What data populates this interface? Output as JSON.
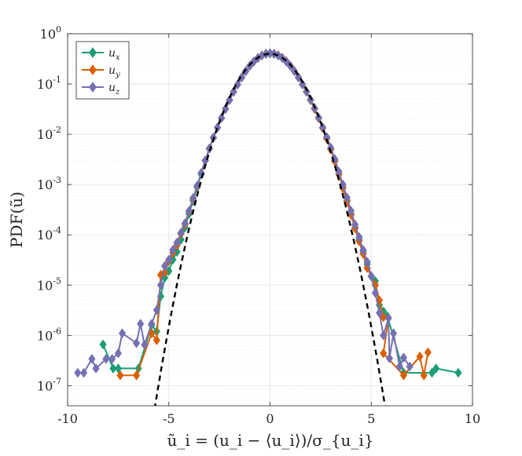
{
  "chart_data": {
    "type": "line",
    "xlabel": "ũ_i = (u_i − ⟨u_i⟩)/σ_{u_i}",
    "ylabel": "PDF(ũ)",
    "xlim": [
      -10,
      10
    ],
    "ylim_log10": [
      -7.4,
      0
    ],
    "y_scale": "log",
    "grid": true,
    "legend_position": "top-left",
    "x_ticks": [
      -10,
      -5,
      0,
      5,
      10
    ],
    "y_ticks": [
      {
        "base": "10",
        "exp": "0",
        "value": 1
      },
      {
        "base": "10",
        "exp": "-1",
        "value": 0.1
      },
      {
        "base": "10",
        "exp": "-2",
        "value": 0.01
      },
      {
        "base": "10",
        "exp": "-3",
        "value": 0.001
      },
      {
        "base": "10",
        "exp": "-4",
        "value": 0.0001
      },
      {
        "base": "10",
        "exp": "-5",
        "value": 1e-05
      },
      {
        "base": "10",
        "exp": "-6",
        "value": 1e-06
      },
      {
        "base": "10",
        "exp": "-7",
        "value": 1e-07
      }
    ],
    "series": [
      {
        "name": "u_x",
        "color": "#1b9e77",
        "marker": "diamond",
        "points": [
          [
            -8.25,
            6.6e-07
          ],
          [
            -7.75,
            2.2e-07
          ],
          [
            -7.5,
            2.2e-07
          ],
          [
            -6.5,
            2.2e-07
          ],
          [
            -5.85,
            1.6e-06
          ],
          [
            -5.6,
            1.2e-06
          ],
          [
            -5.4,
            6e-06
          ],
          [
            -5.2,
            1.4e-05
          ],
          [
            -5.0,
            1.9e-05
          ],
          [
            -4.8,
            3.2e-05
          ],
          [
            -4.6,
            4.6e-05
          ],
          [
            -4.4,
            8e-05
          ],
          [
            -4.2,
            0.00014
          ],
          [
            -4.0,
            0.00026
          ],
          [
            -3.8,
            0.00048
          ],
          [
            -3.6,
            0.00088
          ],
          [
            -3.4,
            0.0016
          ],
          [
            -3.2,
            0.003
          ],
          [
            -3.0,
            0.0052
          ],
          [
            -2.8,
            0.0085
          ],
          [
            -2.6,
            0.0135
          ],
          [
            -2.4,
            0.021
          ],
          [
            -2.2,
            0.032
          ],
          [
            -2.0,
            0.048
          ],
          [
            -1.8,
            0.07
          ],
          [
            -1.6,
            0.098
          ],
          [
            -1.4,
            0.135
          ],
          [
            -1.2,
            0.18
          ],
          [
            -1.0,
            0.23
          ],
          [
            -0.8,
            0.28
          ],
          [
            -0.6,
            0.33
          ],
          [
            -0.4,
            0.37
          ],
          [
            -0.2,
            0.395
          ],
          [
            0.0,
            0.405
          ],
          [
            0.2,
            0.395
          ],
          [
            0.4,
            0.37
          ],
          [
            0.6,
            0.33
          ],
          [
            0.8,
            0.28
          ],
          [
            1.0,
            0.23
          ],
          [
            1.2,
            0.18
          ],
          [
            1.4,
            0.135
          ],
          [
            1.6,
            0.098
          ],
          [
            1.8,
            0.07
          ],
          [
            2.0,
            0.048
          ],
          [
            2.2,
            0.032
          ],
          [
            2.4,
            0.021
          ],
          [
            2.6,
            0.0135
          ],
          [
            2.8,
            0.0085
          ],
          [
            3.0,
            0.0052
          ],
          [
            3.2,
            0.003
          ],
          [
            3.4,
            0.0016
          ],
          [
            3.6,
            0.00088
          ],
          [
            3.8,
            0.00048
          ],
          [
            4.0,
            0.00026
          ],
          [
            4.2,
            0.00014
          ],
          [
            4.4,
            8e-05
          ],
          [
            4.6,
            4.6e-05
          ],
          [
            4.8,
            2.6e-05
          ],
          [
            5.0,
            1.5e-05
          ],
          [
            5.2,
            1.2e-05
          ],
          [
            5.4,
            4e-06
          ],
          [
            5.6,
            3e-06
          ],
          [
            5.8,
            2.4e-06
          ],
          [
            6.6,
            1.8e-07
          ],
          [
            8.0,
            1.8e-07
          ],
          [
            8.2,
            2.2e-07
          ],
          [
            9.3,
            1.8e-07
          ]
        ]
      },
      {
        "name": "u_y",
        "color": "#d95f02",
        "marker": "diamond",
        "points": [
          [
            -7.4,
            1.6e-07
          ],
          [
            -6.6,
            1.6e-07
          ],
          [
            -5.85,
            1.1e-06
          ],
          [
            -5.6,
            8e-07
          ],
          [
            -5.4,
            1.6e-05
          ],
          [
            -5.2,
            1.8e-05
          ],
          [
            -5.0,
            3e-05
          ],
          [
            -4.8,
            4.4e-05
          ],
          [
            -4.6,
            6.2e-05
          ],
          [
            -4.4,
            0.000105
          ],
          [
            -4.2,
            0.00016
          ],
          [
            -4.0,
            0.00029
          ],
          [
            -3.8,
            0.00052
          ],
          [
            -3.6,
            0.00092
          ],
          [
            -3.4,
            0.0017
          ],
          [
            -3.2,
            0.003
          ],
          [
            -3.0,
            0.0052
          ],
          [
            -2.8,
            0.0086
          ],
          [
            -2.6,
            0.0136
          ],
          [
            -2.4,
            0.021
          ],
          [
            -2.2,
            0.032
          ],
          [
            -2.0,
            0.048
          ],
          [
            -1.8,
            0.07
          ],
          [
            -1.6,
            0.098
          ],
          [
            -1.4,
            0.135
          ],
          [
            -1.2,
            0.18
          ],
          [
            -1.0,
            0.23
          ],
          [
            -0.8,
            0.28
          ],
          [
            -0.6,
            0.33
          ],
          [
            -0.4,
            0.37
          ],
          [
            -0.2,
            0.4
          ],
          [
            0.0,
            0.41
          ],
          [
            0.2,
            0.4
          ],
          [
            0.4,
            0.375
          ],
          [
            0.6,
            0.335
          ],
          [
            0.8,
            0.285
          ],
          [
            1.0,
            0.233
          ],
          [
            1.2,
            0.182
          ],
          [
            1.4,
            0.136
          ],
          [
            1.6,
            0.098
          ],
          [
            1.8,
            0.07
          ],
          [
            2.0,
            0.048
          ],
          [
            2.2,
            0.032
          ],
          [
            2.4,
            0.021
          ],
          [
            2.6,
            0.0133
          ],
          [
            2.8,
            0.0082
          ],
          [
            3.0,
            0.005
          ],
          [
            3.2,
            0.0029
          ],
          [
            3.4,
            0.0016
          ],
          [
            3.6,
            0.00085
          ],
          [
            3.8,
            0.00046
          ],
          [
            4.0,
            0.00025
          ],
          [
            4.2,
            0.000135
          ],
          [
            4.4,
            7.5e-05
          ],
          [
            4.6,
            4.2e-05
          ],
          [
            4.8,
            2.2e-05
          ],
          [
            5.0,
            1.5e-05
          ],
          [
            5.2,
            1e-05
          ],
          [
            5.4,
            5e-06
          ],
          [
            5.6,
            2.3e-06
          ],
          [
            5.85,
            2.2e-06
          ],
          [
            5.6,
            4.4e-07
          ],
          [
            6.6,
            1.6e-07
          ],
          [
            7.4,
            3.8e-07
          ],
          [
            7.6,
            1.6e-07
          ],
          [
            7.8,
            4.6e-07
          ]
        ]
      },
      {
        "name": "u_z",
        "color": "#7570b3",
        "marker": "diamond",
        "points": [
          [
            -9.5,
            1.8e-07
          ],
          [
            -9.2,
            1.8e-07
          ],
          [
            -8.8,
            3.4e-07
          ],
          [
            -8.6,
            2.2e-07
          ],
          [
            -8.1,
            3.4e-07
          ],
          [
            -7.8,
            3.4e-07
          ],
          [
            -7.5,
            4.4e-07
          ],
          [
            -7.3,
            1.1e-06
          ],
          [
            -6.6,
            7e-07
          ],
          [
            -6.4,
            1.7e-06
          ],
          [
            -6.2,
            6.5e-07
          ],
          [
            -5.85,
            1.7e-06
          ],
          [
            -5.6,
            3.2e-06
          ],
          [
            -5.4,
            1e-05
          ],
          [
            -5.2,
            2.4e-05
          ],
          [
            -5.0,
            3.2e-05
          ],
          [
            -4.8,
            5e-05
          ],
          [
            -4.6,
            7e-05
          ],
          [
            -4.4,
            0.00011
          ],
          [
            -4.2,
            0.00017
          ],
          [
            -4.0,
            0.0003
          ],
          [
            -3.8,
            0.00054
          ],
          [
            -3.6,
            0.00095
          ],
          [
            -3.4,
            0.0017
          ],
          [
            -3.2,
            0.003
          ],
          [
            -3.0,
            0.0052
          ],
          [
            -2.8,
            0.0086
          ],
          [
            -2.6,
            0.0136
          ],
          [
            -2.4,
            0.021
          ],
          [
            -2.2,
            0.032
          ],
          [
            -2.0,
            0.048
          ],
          [
            -1.8,
            0.07
          ],
          [
            -1.6,
            0.098
          ],
          [
            -1.4,
            0.135
          ],
          [
            -1.2,
            0.18
          ],
          [
            -1.0,
            0.23
          ],
          [
            -0.8,
            0.28
          ],
          [
            -0.6,
            0.33
          ],
          [
            -0.4,
            0.37
          ],
          [
            -0.2,
            0.4
          ],
          [
            0.0,
            0.41
          ],
          [
            0.2,
            0.4
          ],
          [
            0.4,
            0.37
          ],
          [
            0.6,
            0.33
          ],
          [
            0.8,
            0.28
          ],
          [
            1.0,
            0.23
          ],
          [
            1.2,
            0.18
          ],
          [
            1.4,
            0.136
          ],
          [
            1.6,
            0.099
          ],
          [
            1.8,
            0.071
          ],
          [
            2.0,
            0.049
          ],
          [
            2.2,
            0.033
          ],
          [
            2.4,
            0.0215
          ],
          [
            2.6,
            0.0138
          ],
          [
            2.8,
            0.0088
          ],
          [
            3.0,
            0.0054
          ],
          [
            3.2,
            0.0032
          ],
          [
            3.4,
            0.0018
          ],
          [
            3.6,
            0.001
          ],
          [
            3.8,
            0.00055
          ],
          [
            4.0,
            0.0003
          ],
          [
            4.2,
            0.00016
          ],
          [
            4.4,
            9e-05
          ],
          [
            4.6,
            5e-05
          ],
          [
            4.8,
            2.9e-05
          ],
          [
            5.0,
            1.5e-05
          ],
          [
            5.2,
            7e-06
          ],
          [
            5.4,
            2.8e-06
          ],
          [
            5.6,
            1e-06
          ],
          [
            5.85,
            2.2e-06
          ],
          [
            5.9,
            3.5e-07
          ],
          [
            6.1,
            1.1e-06
          ],
          [
            6.4,
            2.4e-07
          ],
          [
            6.6,
            3.6e-07
          ],
          [
            6.9,
            2.4e-07
          ]
        ]
      }
    ],
    "reference_curve": {
      "type": "gaussian",
      "mean": 0,
      "std": 1,
      "style": "dashed",
      "color": "#000000"
    }
  }
}
